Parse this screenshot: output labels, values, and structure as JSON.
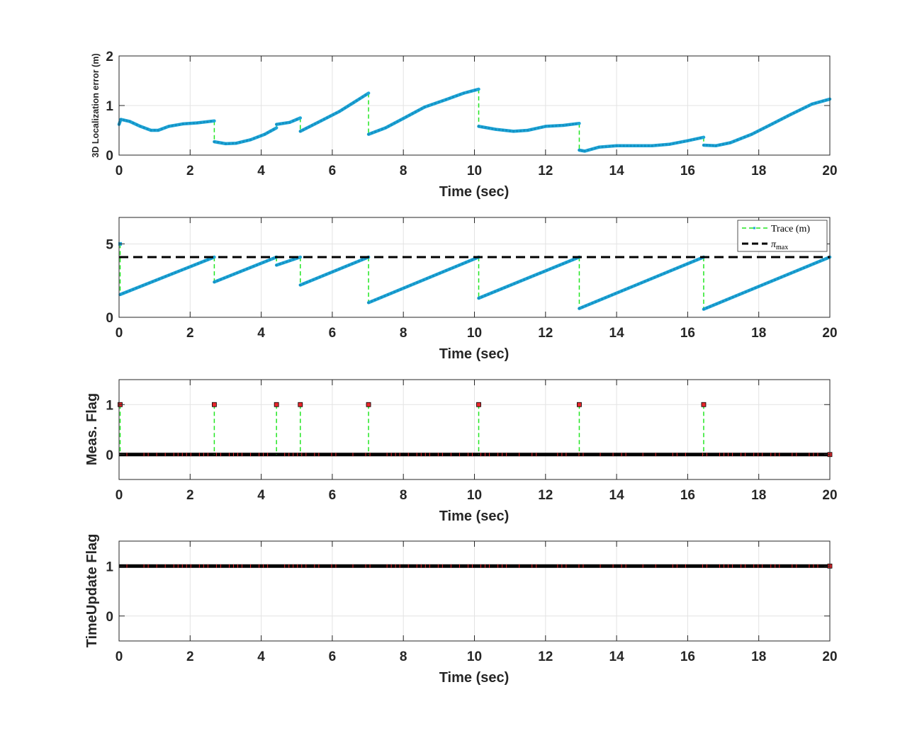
{
  "chart_data": [
    {
      "type": "line",
      "title": "",
      "xlabel": "Time (sec)",
      "ylabel": "3D Localization error (m)",
      "xlim": [
        0,
        20
      ],
      "ylim": [
        0,
        2
      ],
      "xticks": [
        0,
        2,
        4,
        6,
        8,
        10,
        12,
        14,
        16,
        18,
        20
      ],
      "yticks": [
        0,
        1,
        2
      ],
      "grid": true,
      "series": [
        {
          "style": "solid-markers",
          "color": "#1ea6d8",
          "segments": [
            [
              [
                0.0,
                0.62
              ],
              [
                0.05,
                0.72
              ],
              [
                0.3,
                0.68
              ],
              [
                0.6,
                0.58
              ],
              [
                0.9,
                0.5
              ],
              [
                1.1,
                0.5
              ],
              [
                1.4,
                0.58
              ],
              [
                1.8,
                0.63
              ],
              [
                2.2,
                0.65
              ],
              [
                2.68,
                0.69
              ]
            ],
            [
              [
                2.68,
                0.27
              ],
              [
                3.0,
                0.23
              ],
              [
                3.3,
                0.24
              ],
              [
                3.7,
                0.31
              ],
              [
                4.1,
                0.42
              ],
              [
                4.43,
                0.55
              ]
            ],
            [
              [
                4.43,
                0.62
              ],
              [
                4.8,
                0.66
              ],
              [
                5.1,
                0.75
              ]
            ],
            [
              [
                5.1,
                0.48
              ],
              [
                5.6,
                0.66
              ],
              [
                6.2,
                0.88
              ],
              [
                6.6,
                1.06
              ],
              [
                7.02,
                1.25
              ]
            ],
            [
              [
                7.02,
                0.42
              ],
              [
                7.5,
                0.55
              ],
              [
                8.0,
                0.74
              ],
              [
                8.6,
                0.97
              ],
              [
                9.2,
                1.12
              ],
              [
                9.7,
                1.25
              ],
              [
                10.12,
                1.33
              ]
            ],
            [
              [
                10.12,
                0.58
              ],
              [
                10.6,
                0.52
              ],
              [
                11.1,
                0.48
              ],
              [
                11.5,
                0.5
              ],
              [
                12.0,
                0.58
              ],
              [
                12.5,
                0.6
              ],
              [
                12.95,
                0.64
              ]
            ],
            [
              [
                12.95,
                0.1
              ],
              [
                13.1,
                0.08
              ],
              [
                13.5,
                0.16
              ],
              [
                14.0,
                0.19
              ],
              [
                15.0,
                0.19
              ],
              [
                15.5,
                0.22
              ],
              [
                16.0,
                0.29
              ],
              [
                16.45,
                0.36
              ]
            ],
            [
              [
                16.45,
                0.2
              ],
              [
                16.8,
                0.19
              ],
              [
                17.2,
                0.25
              ],
              [
                17.8,
                0.42
              ],
              [
                18.3,
                0.6
              ],
              [
                18.9,
                0.82
              ],
              [
                19.5,
                1.03
              ],
              [
                20.0,
                1.13
              ]
            ]
          ]
        }
      ],
      "jump_connector_color": "#22e622"
    },
    {
      "type": "line",
      "title": "",
      "xlabel": "Time (sec)",
      "ylabel": "",
      "xlim": [
        0,
        20
      ],
      "ylim": [
        0,
        6.8
      ],
      "xticks": [
        0,
        2,
        4,
        6,
        8,
        10,
        12,
        14,
        16,
        18,
        20
      ],
      "yticks": [
        0,
        5
      ],
      "grid": true,
      "legend_position": "top-right",
      "series": [
        {
          "name": "Trace (m)",
          "style": "solid-markers",
          "color": "#1ea6d8",
          "start_point": [
            0.03,
            5.0
          ],
          "segments": [
            [
              [
                0.03,
                1.55
              ],
              [
                2.68,
                4.1
              ]
            ],
            [
              [
                2.68,
                2.4
              ],
              [
                4.43,
                4.1
              ]
            ],
            [
              [
                4.43,
                3.55
              ],
              [
                5.1,
                4.1
              ]
            ],
            [
              [
                5.1,
                2.2
              ],
              [
                7.02,
                4.1
              ]
            ],
            [
              [
                7.02,
                1.0
              ],
              [
                10.12,
                4.1
              ]
            ],
            [
              [
                10.12,
                1.3
              ],
              [
                12.95,
                4.1
              ]
            ],
            [
              [
                12.95,
                0.6
              ],
              [
                16.45,
                4.1
              ]
            ],
            [
              [
                16.45,
                0.55
              ],
              [
                20.0,
                4.1
              ]
            ]
          ]
        },
        {
          "name": "π_max",
          "legend_label": {
            "main": "π",
            "sub": "max"
          },
          "style": "dashed",
          "color": "#000000",
          "constant": 4.1
        }
      ],
      "jump_connector_color": "#22e622"
    },
    {
      "type": "stem",
      "title": "",
      "xlabel": "Time (sec)",
      "ylabel": "Meas. Flag",
      "xlim": [
        0,
        20
      ],
      "ylim": [
        -0.5,
        1.5
      ],
      "xticks": [
        0,
        2,
        4,
        6,
        8,
        10,
        12,
        14,
        16,
        18,
        20
      ],
      "yticks": [
        0,
        1
      ],
      "grid": true,
      "baseline_value": 0,
      "flag_times": [
        0.03,
        2.68,
        4.43,
        5.1,
        7.02,
        10.12,
        12.95,
        16.45
      ],
      "stem_color": "#22e622",
      "marker_color": "#e8262b"
    },
    {
      "type": "stem",
      "title": "",
      "xlabel": "Time (sec)",
      "ylabel": "TimeUpdate Flag",
      "xlim": [
        0,
        20
      ],
      "ylim": [
        -0.5,
        1.5
      ],
      "xticks": [
        0,
        2,
        4,
        6,
        8,
        10,
        12,
        14,
        16,
        18,
        20
      ],
      "yticks": [
        0,
        1
      ],
      "grid": true,
      "baseline_value": 1,
      "flag_times": [],
      "marker_color": "#e8262b"
    }
  ]
}
